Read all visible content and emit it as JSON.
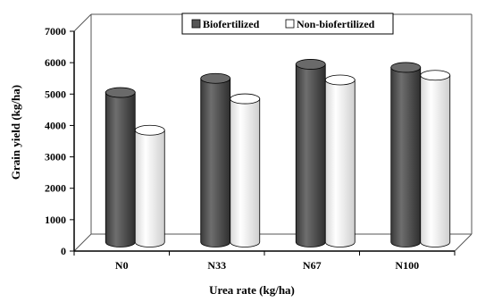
{
  "chart_data": {
    "type": "bar",
    "xlabel": "Urea rate (kg/ha)",
    "ylabel": "Grain yield (kg/ha)",
    "categories": [
      "N0",
      "N33",
      "N67",
      "N100"
    ],
    "series": [
      {
        "name": "Biofertilized",
        "values": [
          4850,
          5300,
          5750,
          5650
        ],
        "color": "#555555"
      },
      {
        "name": "Non-biofertilized",
        "values": [
          3650,
          4650,
          5250,
          5400
        ],
        "color": "#f2f2f2"
      }
    ],
    "ylim": [
      0,
      7000
    ],
    "yticks": [
      0,
      1000,
      2000,
      3000,
      4000,
      5000,
      6000,
      7000
    ],
    "legend_position": "top",
    "grid": false,
    "style": "3d-cylinder"
  }
}
